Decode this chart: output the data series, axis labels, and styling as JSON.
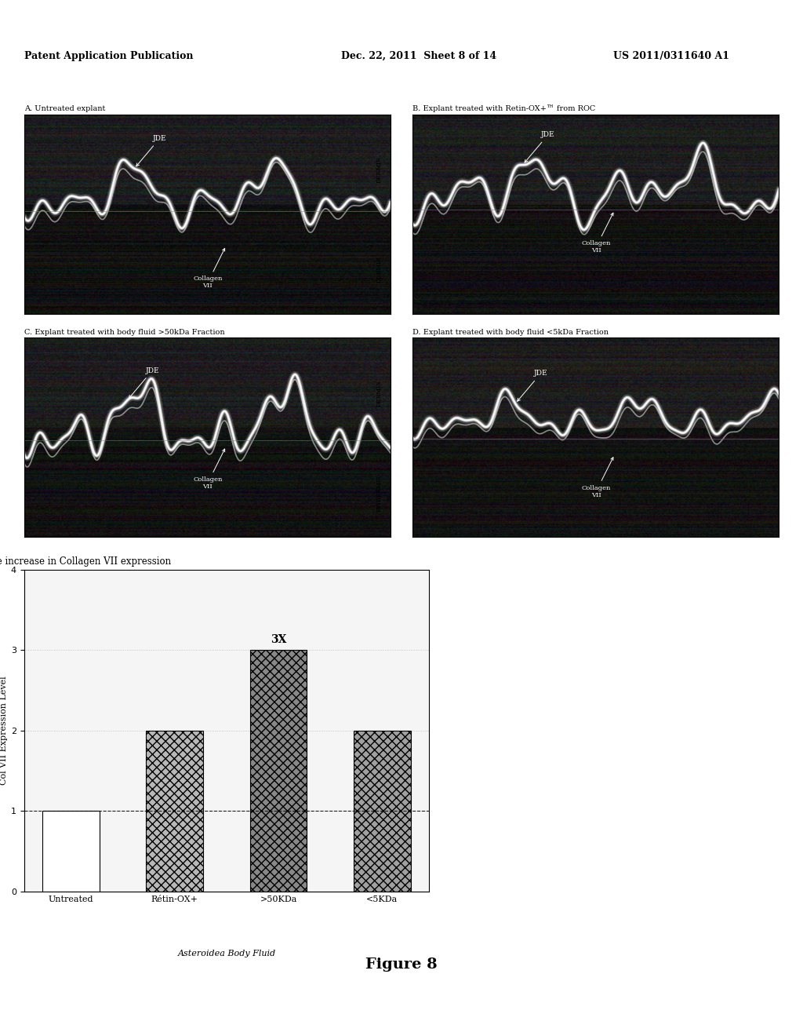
{
  "header_left": "Patent Application Publication",
  "header_mid": "Dec. 22, 2011  Sheet 8 of 14",
  "header_right": "US 2011/0311640 A1",
  "panel_labels": [
    "A. Untreated explant",
    "B. Explant treated with Retin-OX+™ from ROC",
    "C. Explant treated with body fluid >50kDa Fraction",
    "D. Explant treated with body fluid <5kDa Fraction"
  ],
  "chart_title": "E. Relative increase in Collagen VII expression",
  "bar_labels": [
    "Untreated",
    "Rétin-OX+",
    ">50KDa",
    "<5KDa"
  ],
  "bar_values": [
    1.0,
    2.0,
    3.0,
    2.0
  ],
  "bar_colors": [
    "white",
    "#b8b8b8",
    "#888888",
    "#a0a0a0"
  ],
  "bar_hatches": [
    "",
    "xxx",
    "xxx",
    "xxx"
  ],
  "ylabel": "Col VII Expression Level",
  "xlabel_italic": "Asteroidea Body Fluid",
  "annotation_3x": "3X",
  "ylim": [
    0,
    4
  ],
  "yticks": [
    0,
    1,
    2,
    3,
    4
  ],
  "hline_y": 1.0,
  "figure_label": "Figure 8",
  "bg_color": "#ffffff"
}
